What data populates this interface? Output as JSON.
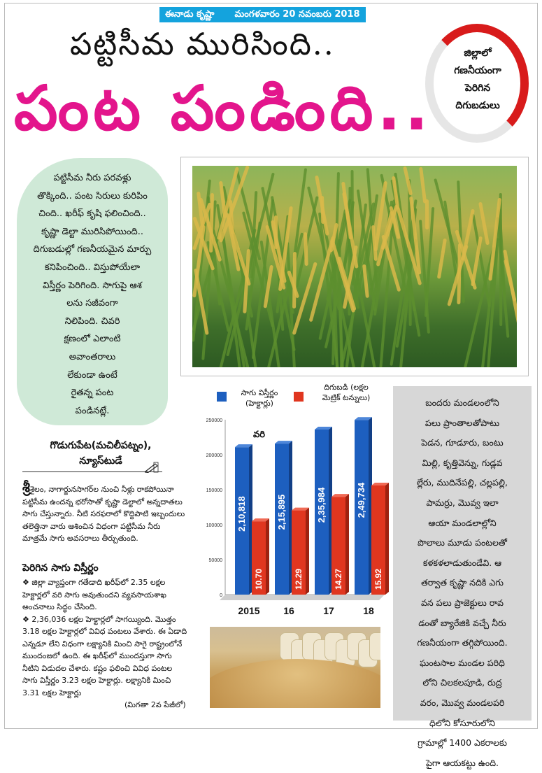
{
  "header": {
    "masthead": "ఈనాడు కృష్ణా",
    "date": "మంగళవారం 20 నవంబరు 2018"
  },
  "headline": {
    "line1": "పట్టిసీమ మురిసింది..",
    "line2": "పంట పండింది.."
  },
  "badge": {
    "lines": [
      "జిల్లాలో",
      "గణనీయంగా",
      "పెరిగిన",
      "దిగుబడులు"
    ]
  },
  "intro_bubble": {
    "lines": [
      "పట్టిసీమ నీరు పరవళ్లు",
      "తొక్కింది.. పంట సిరులు కురిపిం",
      "చింది.. ఖరీఫ్ కృషి ఫలించింది..",
      "కృష్ణా డెల్టా మురిసిపోయింది..",
      "దిగుబడుల్లో గణనీయమైన మార్పు",
      "కనిపించింది.. విస్తుపోయేలా",
      "విస్తీర్ణం పెరిగింది. సాగుపై ఆశ",
      "లను సజీవంగా",
      "నిలిపింది. చివరి",
      "క్షణంలో ఎలాంటి",
      "అవాంతరాలు",
      "లేకుండా ఉంటే",
      "రైతన్న పంట",
      "పండినట్లే."
    ]
  },
  "byline": {
    "place": "గొడుగుపేట(మచిలీపట్నం),",
    "desk": "న్యూస్‌టుడే"
  },
  "article": {
    "dropcap": "శ్రీ",
    "para1": "శైలం, నాగార్జునసాగర్‌ల నుంచి నీళ్లు రాకపోయినా పట్టిసీమ ఉందన్న భరోసాతో కృష్ణా డెల్టాలో అన్నదాతలు సాగు చేస్తున్నారు. నీటి సరఫరాలో కొద్దిపాటి ఇబ్బందులు తలెత్తినా వారు ఆశించిన విధంగా పట్టిసీమ నీరు మాత్రమే సాగు అవసరాలు తీర్చుతుంది.",
    "subheading": "పెరిగిన సాగు విస్తీర్ణం",
    "bullet1": "❖ జిల్లా వ్యాప్తంగా గతేడాది ఖరీఫ్‌లో 2.35 లక్షల హెక్టార్లలో వరి సాగు అవుతుందని వ్యవసాయశాఖ అంచనాలు సిద్ధం చేసింది.",
    "bullet2": "❖ 2,36,036 లక్షల హెక్టార్లలో సాగయ్యింది. మొత్తం 3.18 లక్షల హెక్టార్లలో వివిధ పంటలు వేశారు. ఈ ఏడాది ఎన్నడూ లేని విధంగా లక్ష్యానికి మించి సాగై రాష్ట్రంలోనే ముందంజలో ఉంది. ఈ ఖరీఫ్‌లో ముందస్తుగా సాగు నీటిని విడుదల చేశారు. కష్టం ఫలించి వివిధ పంటల సాగు విస్తీర్ణం 3.23 లక్షల హెక్టార్లు. లక్ష్యానికి మించి 3.31 లక్షల హెక్టార్లు",
    "continued": "(మిగతా 2వ పేజీలో)"
  },
  "chart_data": {
    "type": "bar",
    "title": "వరి",
    "categories": [
      "2015",
      "16",
      "17",
      "18"
    ],
    "ylim": [
      0,
      250000
    ],
    "yticks": [
      "0",
      "50000",
      "100000",
      "150000",
      "200000",
      "250000"
    ],
    "series": [
      {
        "name": "సాగు విస్తీర్ణం (హెక్టార్లు)",
        "legend_line1": "సాగు విస్తీర్ణం",
        "legend_line2": "(హెక్టార్లు)",
        "color": "#1d5fbf",
        "values": [
          210818,
          215895,
          235984,
          249734
        ],
        "labels": [
          "2,10,818",
          "2,15,895",
          "2,35,984",
          "2,49,734"
        ]
      },
      {
        "name": "దిగుబడి (లక్షల మెట్రిక్ టన్నులు)",
        "legend_line1": "దిగుబడి (లక్షల",
        "legend_line2": "మెట్రిక్ టన్నులు)",
        "color": "#e0361f",
        "values": [
          10.7,
          12.29,
          14.27,
          15.92
        ],
        "labels": [
          "10.70",
          "12.29",
          "14.27",
          "15.92"
        ]
      }
    ],
    "grid": false,
    "legend": "top"
  },
  "sidebar": {
    "lines": [
      "బందరు మండలంలోని",
      "పలు ప్రాంతాలతోపాటు",
      "పెడన, గూడూరు, బంటు",
      "మిల్లి, కృత్తివెన్ను, గుడ్లవ",
      "ల్లేరు, ముదినేపల్లి, చల్లపల్లి,",
      "పామర్రు, మొవ్వ ఇలా",
      "ఆయా మండలాల్లోని",
      "పొలాలు మూడు పంటలతో",
      "కళకళలాడుతుండేవి. ఆ",
      "తర్వాత కృష్ణా నదికి ఎగు",
      "వన పలు ప్రాజెక్టులు రావ",
      "డంతో బ్యారేజికి వచ్చే నీరు",
      "గణనీయంగా తగ్గిపోయింది.",
      "ఘంటసాల మండల పరిధి",
      "లోని చిలకలపూడి, రుద్ర",
      "వరం, మొవ్వ మండలపరి",
      "ధిలోని కోసూరులోని",
      "గ్రామాల్లో 1400 ఎకరాలకు",
      "పైగా ఆయకట్టు ఉంది."
    ]
  },
  "colors": {
    "headline_magenta": "#e3158c",
    "masthead_blue": "#14a3dd",
    "badge_red": "#d81b1b",
    "bubble_green": "#cfe9d7",
    "sidebar_gray": "#d7d7d7"
  }
}
